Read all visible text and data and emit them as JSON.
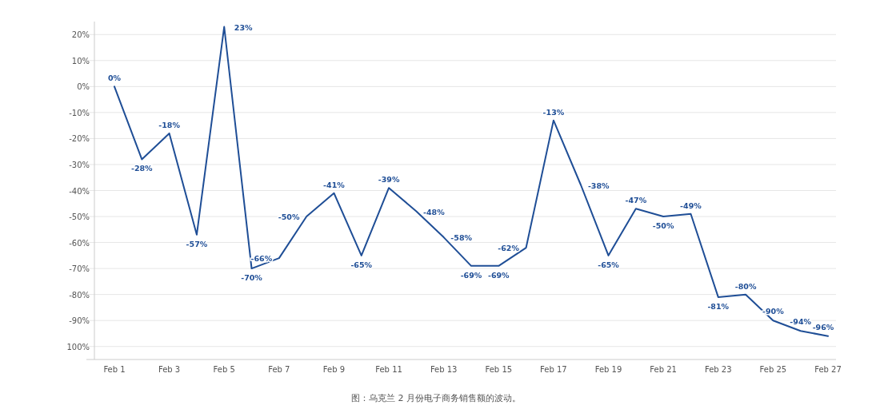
{
  "chart_data": {
    "type": "line",
    "categories": [
      "Feb 1",
      null,
      "Feb 3",
      null,
      "Feb 5",
      null,
      "Feb 7",
      null,
      "Feb 9",
      null,
      "Feb 11",
      null,
      "Feb 13",
      null,
      "Feb 15",
      null,
      "Feb 17",
      null,
      "Feb 19",
      null,
      "Feb 21",
      null,
      "Feb 23",
      null,
      "Feb 25",
      null,
      "Feb 27"
    ],
    "series": [
      {
        "color": "#1f4e96",
        "values": [
          0,
          -28,
          -18,
          -57,
          23,
          -70,
          -66,
          -50,
          -41,
          -65,
          -39,
          -48,
          -58,
          -69,
          -69,
          -62,
          -13,
          -38,
          -65,
          -47,
          -50,
          -49,
          -81,
          -80,
          -90,
          -94,
          -96
        ],
        "value_labels": [
          "0%",
          "-28%",
          "-18%",
          "-57%",
          "23%",
          "-70%",
          "-66%",
          "-50%",
          "-41%",
          "-65%",
          "-39%",
          "-48%",
          "-58%",
          "-69%",
          "-69%",
          "-62%",
          "-13%",
          "-38%",
          "-65%",
          "-47%",
          "-50%",
          "-49%",
          "-81%",
          "-80%",
          "-90%",
          "-94%",
          "-96%"
        ]
      }
    ],
    "ylim": [
      -105,
      25
    ],
    "yticks": [
      {
        "value": 20,
        "label": "20%"
      },
      {
        "value": 10,
        "label": "10%"
      },
      {
        "value": 0,
        "label": "0%"
      },
      {
        "value": -10,
        "label": "-10%"
      },
      {
        "value": -20,
        "label": "-20%"
      },
      {
        "value": -30,
        "label": "-30%"
      },
      {
        "value": -40,
        "label": "-40%"
      },
      {
        "value": -50,
        "label": "-50%"
      },
      {
        "value": -60,
        "label": "-60%"
      },
      {
        "value": -70,
        "label": "-70%"
      },
      {
        "value": -80,
        "label": "-80%"
      },
      {
        "value": -90,
        "label": "-90%"
      },
      {
        "value": -100,
        "label": "100%"
      }
    ],
    "grid": "y",
    "marker": "none",
    "line_style": "solid",
    "annotations": [
      "图：乌克兰 2 月份电子商务销售额的波动。"
    ]
  }
}
